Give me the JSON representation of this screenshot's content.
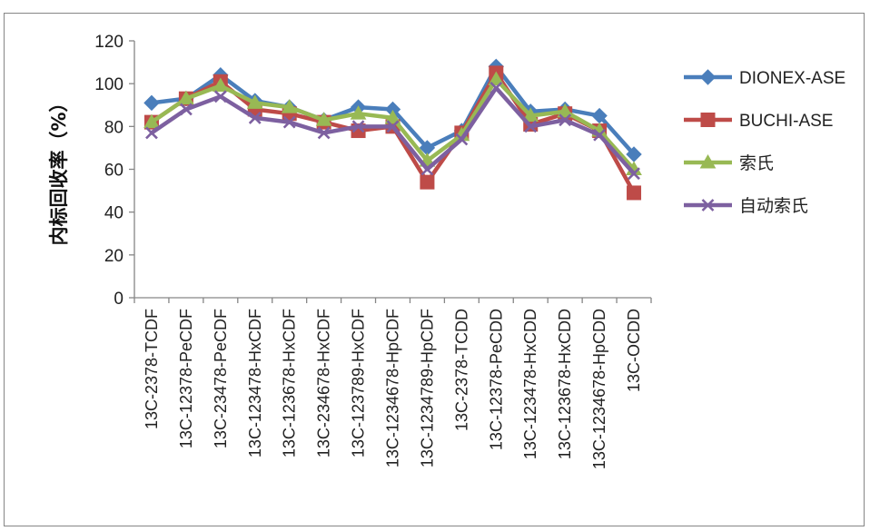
{
  "chart_data": {
    "type": "line",
    "title": "",
    "xlabel": "",
    "ylabel": "内标回收率（%）",
    "ylim": [
      0,
      120
    ],
    "yticks": [
      0,
      20,
      40,
      60,
      80,
      100,
      120
    ],
    "grid": false,
    "legend_position": "right",
    "categories": [
      "13C-2378-TCDF",
      "13C-12378-PeCDF",
      "13C-23478-PeCDF",
      "13C-123478-HxCDF",
      "13C-123678-HxCDF",
      "13C-234678-HxCDF",
      "13C-123789-HxCDF",
      "13C-1234678-HpCDF",
      "13C-1234789-HpCDF",
      "13C-2378-TCDD",
      "13C-12378-PeCDD",
      "13C-123478-HxCDD",
      "13C-123678-HxCDD",
      "13C-1234678-HpCDD",
      "13C-OCDD"
    ],
    "series": [
      {
        "name": "DIONEX-ASE",
        "color": "#4A7EBB",
        "marker": "diamond",
        "values": [
          91,
          93,
          104,
          92,
          89,
          83,
          89,
          88,
          70,
          78,
          108,
          87,
          88,
          85,
          67
        ]
      },
      {
        "name": "BUCHI-ASE",
        "color": "#BE4B48",
        "marker": "square",
        "values": [
          82,
          93,
          101,
          88,
          86,
          82,
          78,
          80,
          54,
          77,
          105,
          81,
          86,
          78,
          49
        ]
      },
      {
        "name": "索氏",
        "color": "#98B954",
        "marker": "triangle",
        "values": [
          82,
          93,
          99,
          91,
          89,
          83,
          86,
          84,
          64,
          76,
          102,
          85,
          87,
          78,
          60
        ]
      },
      {
        "name": "自动索氏",
        "color": "#7D60A0",
        "marker": "x",
        "values": [
          77,
          88,
          94,
          84,
          82,
          77,
          80,
          80,
          60,
          74,
          98,
          80,
          83,
          76,
          58
        ]
      }
    ]
  }
}
